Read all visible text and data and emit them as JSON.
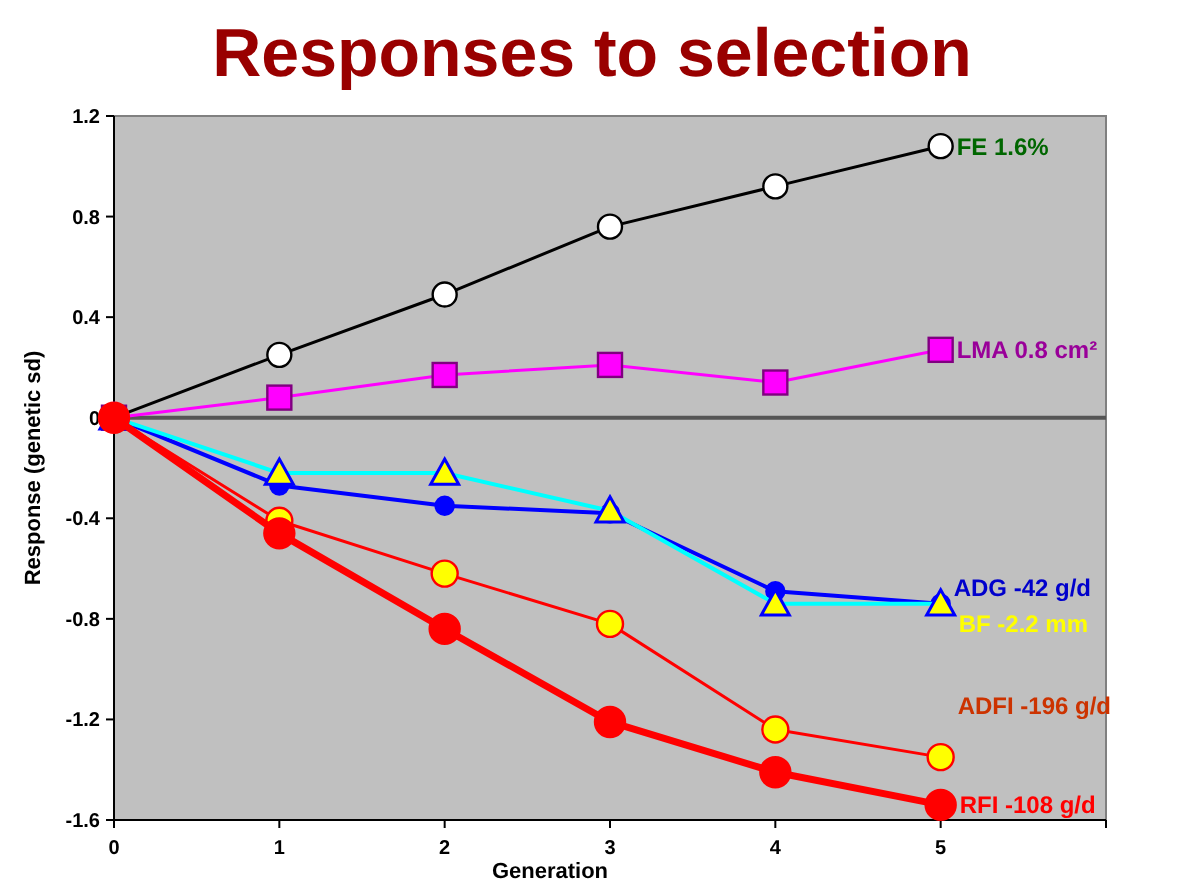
{
  "chart_data": {
    "type": "line",
    "title": "Responses to selection",
    "xlabel": "Generation",
    "ylabel": "Response (genetic sd)",
    "x": [
      0,
      1,
      2,
      3,
      4,
      5
    ],
    "xlim": [
      0,
      6
    ],
    "xticks": [
      0,
      1,
      2,
      3,
      4,
      5,
      {
        "value": 6,
        "label": null
      }
    ],
    "ylim": [
      -1.6,
      1.2
    ],
    "yticks": [
      -1.6,
      -1.2,
      -0.8,
      -0.4,
      0,
      0.4,
      0.8,
      1.2
    ],
    "ref_lines": [
      {
        "axis": "y",
        "value": 0,
        "color": "#555555"
      }
    ],
    "series": [
      {
        "name": "FE 1.6%",
        "color": "#000000",
        "marker": "circle",
        "values": [
          0,
          0.25,
          0.49,
          0.76,
          0.92,
          1.08
        ]
      },
      {
        "name": "LMA 0.8 cm²",
        "color": "#ff00ff",
        "marker": "square",
        "values": [
          0,
          0.08,
          0.17,
          0.21,
          0.14,
          0.27
        ]
      },
      {
        "name": "ADG -42 g/d",
        "color": "#0000ff",
        "marker": "circle",
        "values": [
          0,
          -0.27,
          -0.35,
          -0.38,
          -0.69,
          -0.74
        ]
      },
      {
        "name": "BF -2.2 mm",
        "color": "#00ffff",
        "marker": "triangle",
        "values": [
          0,
          -0.22,
          -0.22,
          -0.37,
          -0.74,
          -0.74
        ]
      },
      {
        "name": "ADFI -196 g/d",
        "color": "#ff0000",
        "marker": "circle",
        "values": [
          0,
          -0.41,
          -0.62,
          -0.82,
          -1.24,
          -1.35
        ]
      },
      {
        "name": "RFI -108 g/d",
        "color": "#ff0000",
        "marker": "circle",
        "values": [
          0,
          -0.46,
          -0.84,
          -1.21,
          -1.41,
          -1.54
        ]
      }
    ]
  }
}
